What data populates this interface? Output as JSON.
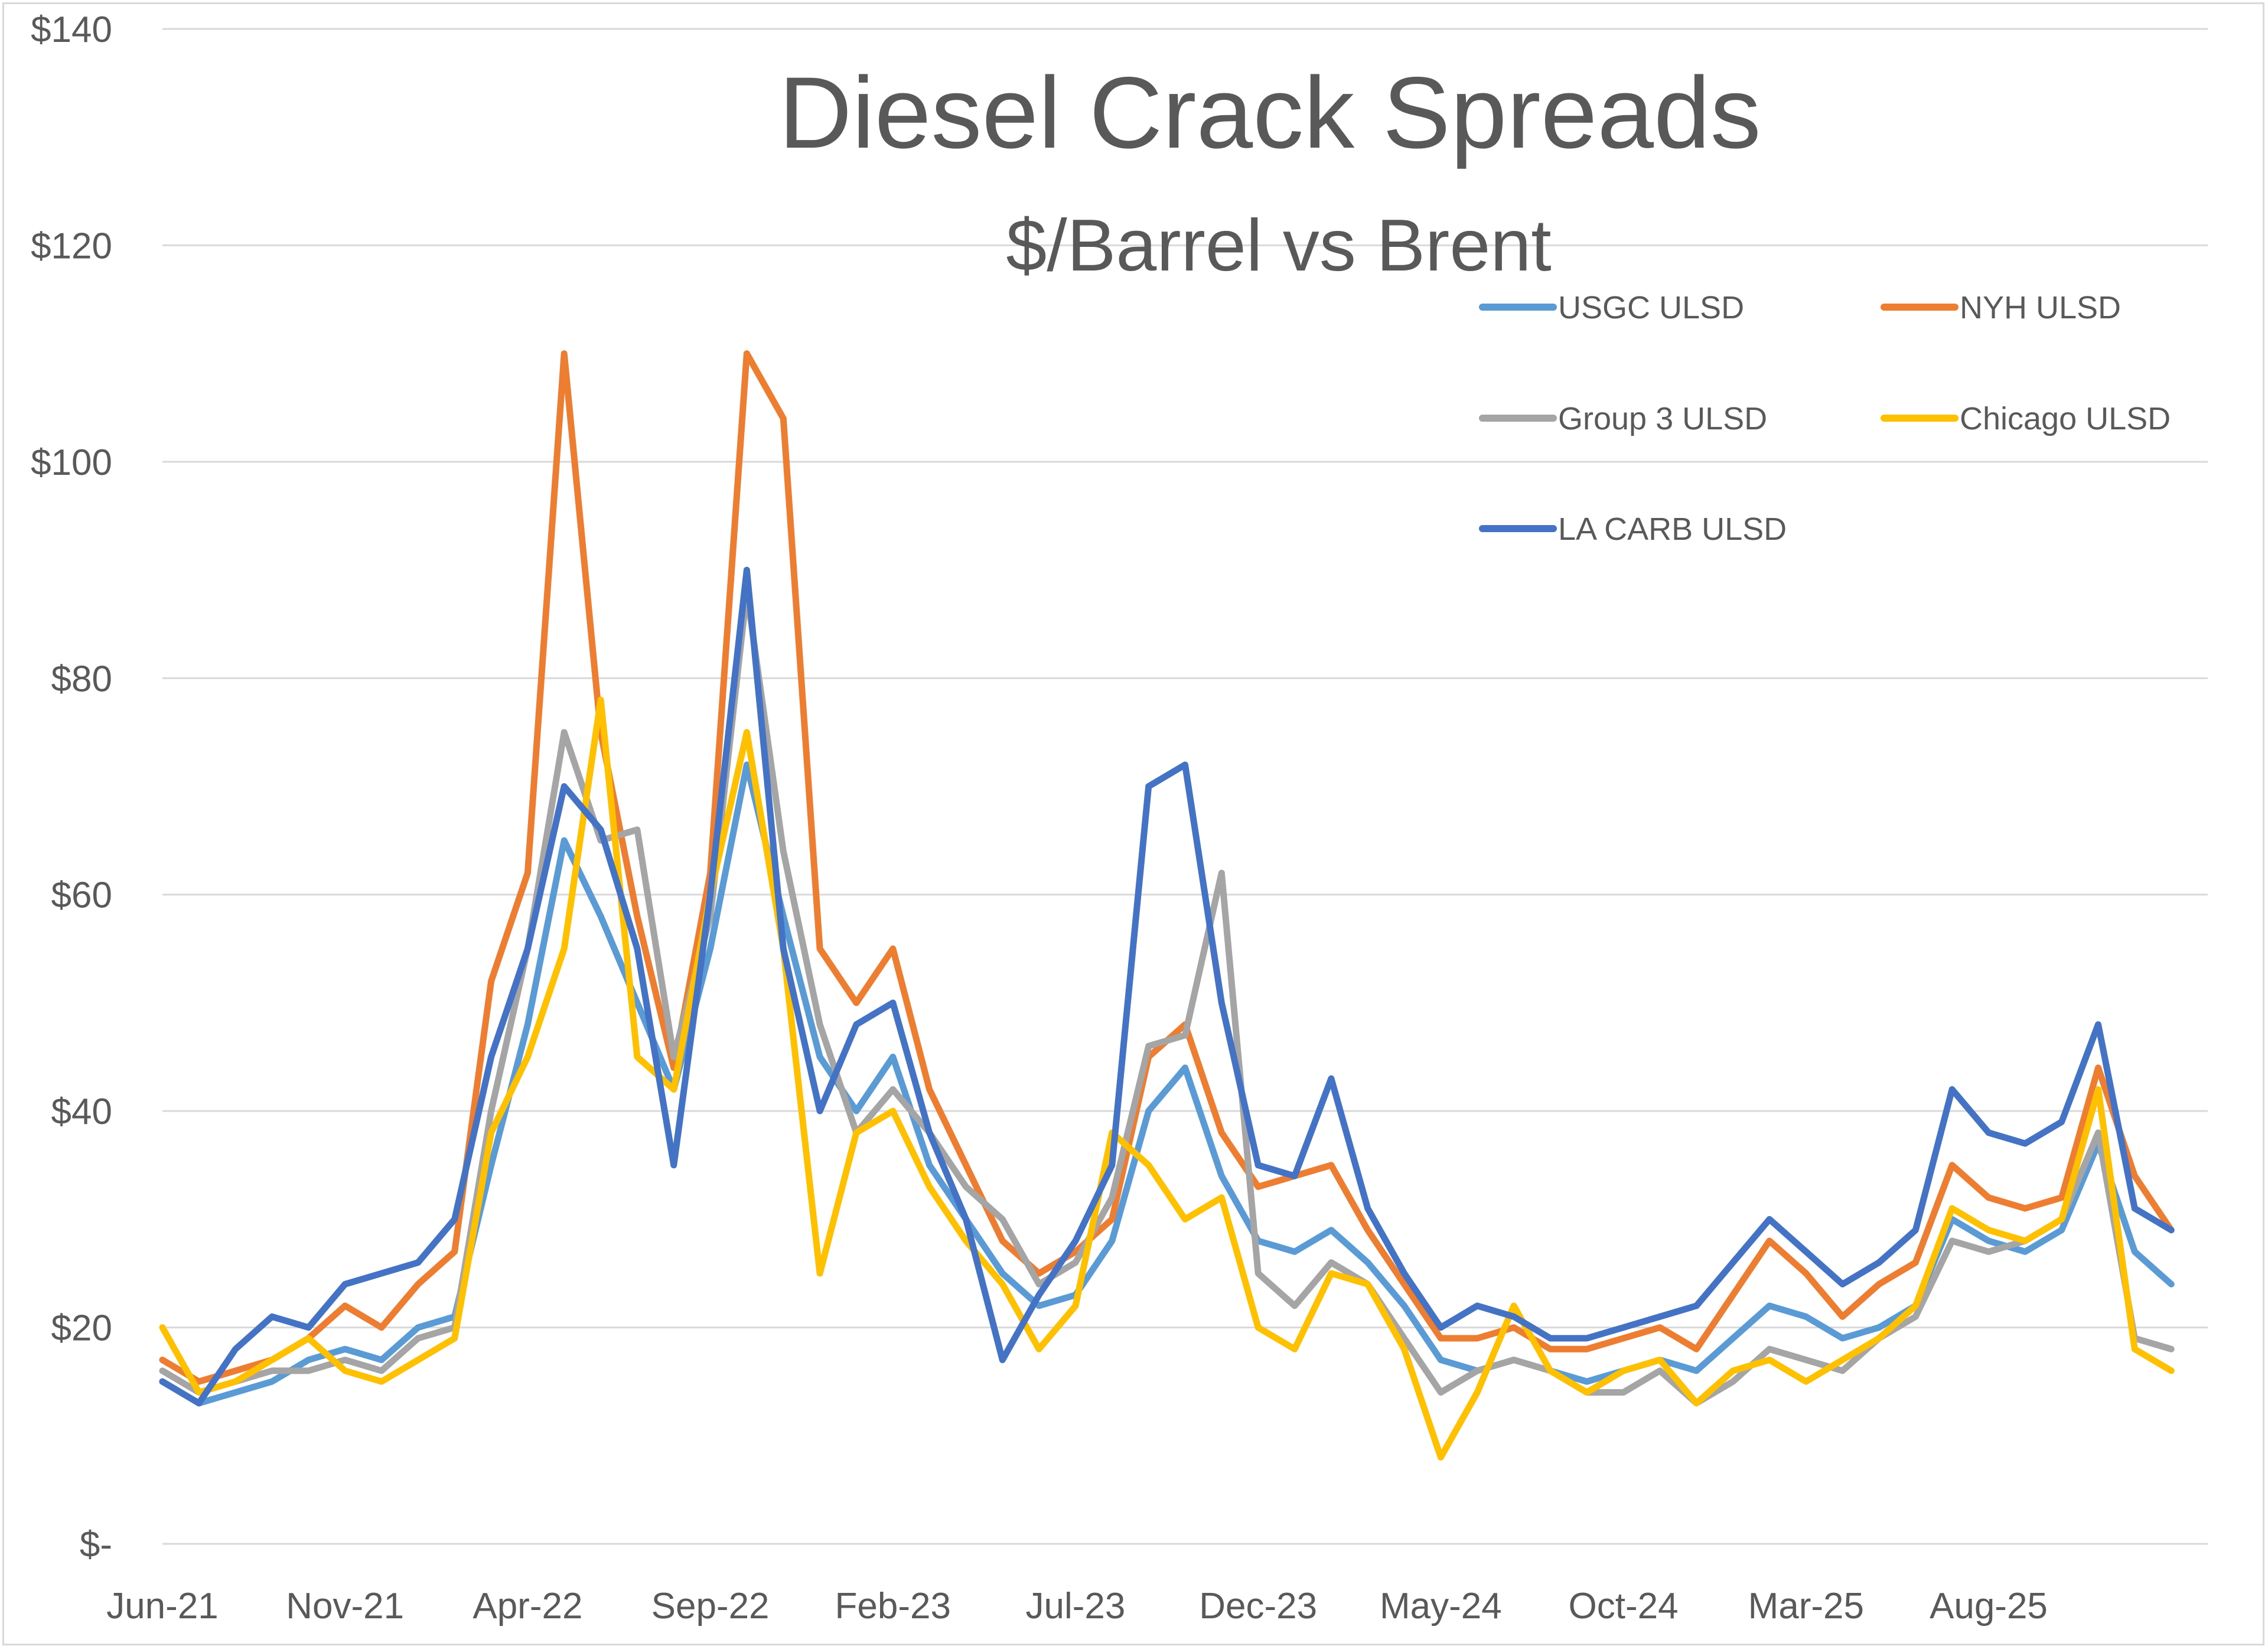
{
  "chart_data": {
    "type": "line",
    "title": "Diesel Crack Spreads",
    "subtitle": "$/Barrel vs Brent",
    "xlabel": "",
    "ylabel": "",
    "ylim": [
      0,
      140
    ],
    "xlim": [
      "2021-06",
      "2026-02"
    ],
    "y_ticks": [
      {
        "value": 0,
        "label": "$-"
      },
      {
        "value": 20,
        "label": "$20"
      },
      {
        "value": 40,
        "label": "$40"
      },
      {
        "value": 60,
        "label": "$60"
      },
      {
        "value": 80,
        "label": "$80"
      },
      {
        "value": 100,
        "label": "$100"
      },
      {
        "value": 120,
        "label": "$120"
      },
      {
        "value": 140,
        "label": "$140"
      }
    ],
    "x_ticks": [
      {
        "date": "2021-06",
        "label": "Jun-21"
      },
      {
        "date": "2021-11",
        "label": "Nov-21"
      },
      {
        "date": "2022-04",
        "label": "Apr-22"
      },
      {
        "date": "2022-09",
        "label": "Sep-22"
      },
      {
        "date": "2023-02",
        "label": "Feb-23"
      },
      {
        "date": "2023-07",
        "label": "Jul-23"
      },
      {
        "date": "2023-12",
        "label": "Dec-23"
      },
      {
        "date": "2024-05",
        "label": "May-24"
      },
      {
        "date": "2024-10",
        "label": "Oct-24"
      },
      {
        "date": "2025-03",
        "label": "Mar-25"
      },
      {
        "date": "2025-08",
        "label": "Aug-25"
      }
    ],
    "grid": true,
    "legend_position": "top-right",
    "series": [
      {
        "name": "USGC ULSD",
        "color": "#5B9BD5",
        "points": [
          [
            "2021-06",
            15
          ],
          [
            "2021-07",
            13
          ],
          [
            "2021-08",
            14
          ],
          [
            "2021-09",
            15
          ],
          [
            "2021-10",
            17
          ],
          [
            "2021-11",
            18
          ],
          [
            "2021-12",
            17
          ],
          [
            "2022-01",
            20
          ],
          [
            "2022-02",
            21
          ],
          [
            "2022-03",
            35
          ],
          [
            "2022-04",
            48
          ],
          [
            "2022-05",
            65
          ],
          [
            "2022-06",
            58
          ],
          [
            "2022-07",
            50
          ],
          [
            "2022-08",
            42
          ],
          [
            "2022-09",
            55
          ],
          [
            "2022-10",
            72
          ],
          [
            "2022-11",
            58
          ],
          [
            "2022-12",
            45
          ],
          [
            "2023-01",
            40
          ],
          [
            "2023-02",
            45
          ],
          [
            "2023-03",
            35
          ],
          [
            "2023-04",
            30
          ],
          [
            "2023-05",
            25
          ],
          [
            "2023-06",
            22
          ],
          [
            "2023-07",
            23
          ],
          [
            "2023-08",
            28
          ],
          [
            "2023-09",
            40
          ],
          [
            "2023-10",
            44
          ],
          [
            "2023-11",
            34
          ],
          [
            "2023-12",
            28
          ],
          [
            "2024-01",
            27
          ],
          [
            "2024-02",
            29
          ],
          [
            "2024-03",
            26
          ],
          [
            "2024-04",
            22
          ],
          [
            "2024-05",
            17
          ],
          [
            "2024-06",
            16
          ],
          [
            "2024-07",
            17
          ],
          [
            "2024-08",
            16
          ],
          [
            "2024-09",
            15
          ],
          [
            "2024-10",
            16
          ],
          [
            "2024-11",
            17
          ],
          [
            "2024-12",
            16
          ],
          [
            "2025-01",
            19
          ],
          [
            "2025-02",
            22
          ],
          [
            "2025-03",
            21
          ],
          [
            "2025-04",
            19
          ],
          [
            "2025-05",
            20
          ],
          [
            "2025-06",
            22
          ],
          [
            "2025-07",
            30
          ],
          [
            "2025-08",
            28
          ],
          [
            "2025-09",
            27
          ],
          [
            "2025-10",
            29
          ],
          [
            "2025-11",
            37
          ],
          [
            "2025-12",
            27
          ],
          [
            "2026-01",
            24
          ]
        ]
      },
      {
        "name": "NYH ULSD",
        "color": "#ED7D31",
        "points": [
          [
            "2021-06",
            17
          ],
          [
            "2021-07",
            15
          ],
          [
            "2021-08",
            16
          ],
          [
            "2021-09",
            17
          ],
          [
            "2021-10",
            19
          ],
          [
            "2021-11",
            22
          ],
          [
            "2021-12",
            20
          ],
          [
            "2022-01",
            24
          ],
          [
            "2022-02",
            27
          ],
          [
            "2022-03",
            52
          ],
          [
            "2022-04",
            62
          ],
          [
            "2022-05",
            110
          ],
          [
            "2022-06",
            75
          ],
          [
            "2022-07",
            58
          ],
          [
            "2022-08",
            44
          ],
          [
            "2022-09",
            62
          ],
          [
            "2022-10",
            110
          ],
          [
            "2022-11",
            104
          ],
          [
            "2022-12",
            55
          ],
          [
            "2023-01",
            50
          ],
          [
            "2023-02",
            55
          ],
          [
            "2023-03",
            42
          ],
          [
            "2023-04",
            35
          ],
          [
            "2023-05",
            28
          ],
          [
            "2023-06",
            25
          ],
          [
            "2023-07",
            27
          ],
          [
            "2023-08",
            30
          ],
          [
            "2023-09",
            45
          ],
          [
            "2023-10",
            48
          ],
          [
            "2023-11",
            38
          ],
          [
            "2023-12",
            33
          ],
          [
            "2024-01",
            34
          ],
          [
            "2024-02",
            35
          ],
          [
            "2024-03",
            29
          ],
          [
            "2024-04",
            24
          ],
          [
            "2024-05",
            19
          ],
          [
            "2024-06",
            19
          ],
          [
            "2024-07",
            20
          ],
          [
            "2024-08",
            18
          ],
          [
            "2024-09",
            18
          ],
          [
            "2024-10",
            19
          ],
          [
            "2024-11",
            20
          ],
          [
            "2024-12",
            18
          ],
          [
            "2025-01",
            23
          ],
          [
            "2025-02",
            28
          ],
          [
            "2025-03",
            25
          ],
          [
            "2025-04",
            21
          ],
          [
            "2025-05",
            24
          ],
          [
            "2025-06",
            26
          ],
          [
            "2025-07",
            35
          ],
          [
            "2025-08",
            32
          ],
          [
            "2025-09",
            31
          ],
          [
            "2025-10",
            32
          ],
          [
            "2025-11",
            44
          ],
          [
            "2025-12",
            34
          ],
          [
            "2026-01",
            29
          ]
        ]
      },
      {
        "name": "Group 3 ULSD",
        "color": "#A5A5A5",
        "points": [
          [
            "2021-06",
            16
          ],
          [
            "2021-07",
            14
          ],
          [
            "2021-08",
            15
          ],
          [
            "2021-09",
            16
          ],
          [
            "2021-10",
            16
          ],
          [
            "2021-11",
            17
          ],
          [
            "2021-12",
            16
          ],
          [
            "2022-01",
            19
          ],
          [
            "2022-02",
            20
          ],
          [
            "2022-03",
            40
          ],
          [
            "2022-04",
            55
          ],
          [
            "2022-05",
            75
          ],
          [
            "2022-06",
            65
          ],
          [
            "2022-07",
            66
          ],
          [
            "2022-08",
            45
          ],
          [
            "2022-09",
            58
          ],
          [
            "2022-10",
            88
          ],
          [
            "2022-11",
            64
          ],
          [
            "2022-12",
            48
          ],
          [
            "2023-01",
            38
          ],
          [
            "2023-02",
            42
          ],
          [
            "2023-03",
            38
          ],
          [
            "2023-04",
            33
          ],
          [
            "2023-05",
            30
          ],
          [
            "2023-06",
            24
          ],
          [
            "2023-07",
            26
          ],
          [
            "2023-08",
            32
          ],
          [
            "2023-09",
            46
          ],
          [
            "2023-10",
            47
          ],
          [
            "2023-11",
            62
          ],
          [
            "2023-12",
            25
          ],
          [
            "2024-01",
            22
          ],
          [
            "2024-02",
            26
          ],
          [
            "2024-03",
            24
          ],
          [
            "2024-04",
            19
          ],
          [
            "2024-05",
            14
          ],
          [
            "2024-06",
            16
          ],
          [
            "2024-07",
            17
          ],
          [
            "2024-08",
            16
          ],
          [
            "2024-09",
            14
          ],
          [
            "2024-10",
            14
          ],
          [
            "2024-11",
            16
          ],
          [
            "2024-12",
            13
          ],
          [
            "2025-01",
            15
          ],
          [
            "2025-02",
            18
          ],
          [
            "2025-03",
            17
          ],
          [
            "2025-04",
            16
          ],
          [
            "2025-05",
            19
          ],
          [
            "2025-06",
            21
          ],
          [
            "2025-07",
            28
          ],
          [
            "2025-08",
            27
          ],
          [
            "2025-09",
            28
          ],
          [
            "2025-10",
            30
          ],
          [
            "2025-11",
            38
          ],
          [
            "2025-12",
            19
          ],
          [
            "2026-01",
            18
          ]
        ]
      },
      {
        "name": "Chicago ULSD",
        "color": "#FFC000",
        "points": [
          [
            "2021-06",
            20
          ],
          [
            "2021-07",
            14
          ],
          [
            "2021-08",
            15
          ],
          [
            "2021-09",
            17
          ],
          [
            "2021-10",
            19
          ],
          [
            "2021-11",
            16
          ],
          [
            "2021-12",
            15
          ],
          [
            "2022-01",
            17
          ],
          [
            "2022-02",
            19
          ],
          [
            "2022-03",
            38
          ],
          [
            "2022-04",
            45
          ],
          [
            "2022-05",
            55
          ],
          [
            "2022-06",
            78
          ],
          [
            "2022-07",
            45
          ],
          [
            "2022-08",
            42
          ],
          [
            "2022-09",
            60
          ],
          [
            "2022-10",
            75
          ],
          [
            "2022-11",
            55
          ],
          [
            "2022-12",
            25
          ],
          [
            "2023-01",
            38
          ],
          [
            "2023-02",
            40
          ],
          [
            "2023-03",
            33
          ],
          [
            "2023-04",
            28
          ],
          [
            "2023-05",
            24
          ],
          [
            "2023-06",
            18
          ],
          [
            "2023-07",
            22
          ],
          [
            "2023-08",
            38
          ],
          [
            "2023-09",
            35
          ],
          [
            "2023-10",
            30
          ],
          [
            "2023-11",
            32
          ],
          [
            "2023-12",
            20
          ],
          [
            "2024-01",
            18
          ],
          [
            "2024-02",
            25
          ],
          [
            "2024-03",
            24
          ],
          [
            "2024-04",
            18
          ],
          [
            "2024-05",
            8
          ],
          [
            "2024-06",
            14
          ],
          [
            "2024-07",
            22
          ],
          [
            "2024-08",
            16
          ],
          [
            "2024-09",
            14
          ],
          [
            "2024-10",
            16
          ],
          [
            "2024-11",
            17
          ],
          [
            "2024-12",
            13
          ],
          [
            "2025-01",
            16
          ],
          [
            "2025-02",
            17
          ],
          [
            "2025-03",
            15
          ],
          [
            "2025-04",
            17
          ],
          [
            "2025-05",
            19
          ],
          [
            "2025-06",
            22
          ],
          [
            "2025-07",
            31
          ],
          [
            "2025-08",
            29
          ],
          [
            "2025-09",
            28
          ],
          [
            "2025-10",
            30
          ],
          [
            "2025-11",
            42
          ],
          [
            "2025-12",
            18
          ],
          [
            "2026-01",
            16
          ]
        ]
      },
      {
        "name": "LA CARB ULSD",
        "color": "#4472C4",
        "points": [
          [
            "2021-06",
            15
          ],
          [
            "2021-07",
            13
          ],
          [
            "2021-08",
            18
          ],
          [
            "2021-09",
            21
          ],
          [
            "2021-10",
            20
          ],
          [
            "2021-11",
            24
          ],
          [
            "2021-12",
            25
          ],
          [
            "2022-01",
            26
          ],
          [
            "2022-02",
            30
          ],
          [
            "2022-03",
            45
          ],
          [
            "2022-04",
            55
          ],
          [
            "2022-05",
            70
          ],
          [
            "2022-06",
            66
          ],
          [
            "2022-07",
            55
          ],
          [
            "2022-08",
            35
          ],
          [
            "2022-09",
            60
          ],
          [
            "2022-10",
            90
          ],
          [
            "2022-11",
            55
          ],
          [
            "2022-12",
            40
          ],
          [
            "2023-01",
            48
          ],
          [
            "2023-02",
            50
          ],
          [
            "2023-03",
            38
          ],
          [
            "2023-04",
            30
          ],
          [
            "2023-05",
            17
          ],
          [
            "2023-06",
            23
          ],
          [
            "2023-07",
            28
          ],
          [
            "2023-08",
            35
          ],
          [
            "2023-09",
            70
          ],
          [
            "2023-10",
            72
          ],
          [
            "2023-11",
            50
          ],
          [
            "2023-12",
            35
          ],
          [
            "2024-01",
            34
          ],
          [
            "2024-02",
            43
          ],
          [
            "2024-03",
            31
          ],
          [
            "2024-04",
            25
          ],
          [
            "2024-05",
            20
          ],
          [
            "2024-06",
            22
          ],
          [
            "2024-07",
            21
          ],
          [
            "2024-08",
            19
          ],
          [
            "2024-09",
            19
          ],
          [
            "2024-10",
            20
          ],
          [
            "2024-11",
            21
          ],
          [
            "2024-12",
            22
          ],
          [
            "2025-01",
            26
          ],
          [
            "2025-02",
            30
          ],
          [
            "2025-03",
            27
          ],
          [
            "2025-04",
            24
          ],
          [
            "2025-05",
            26
          ],
          [
            "2025-06",
            29
          ],
          [
            "2025-07",
            42
          ],
          [
            "2025-08",
            38
          ],
          [
            "2025-09",
            37
          ],
          [
            "2025-10",
            39
          ],
          [
            "2025-11",
            48
          ],
          [
            "2025-12",
            31
          ],
          [
            "2026-01",
            29
          ]
        ]
      }
    ]
  }
}
